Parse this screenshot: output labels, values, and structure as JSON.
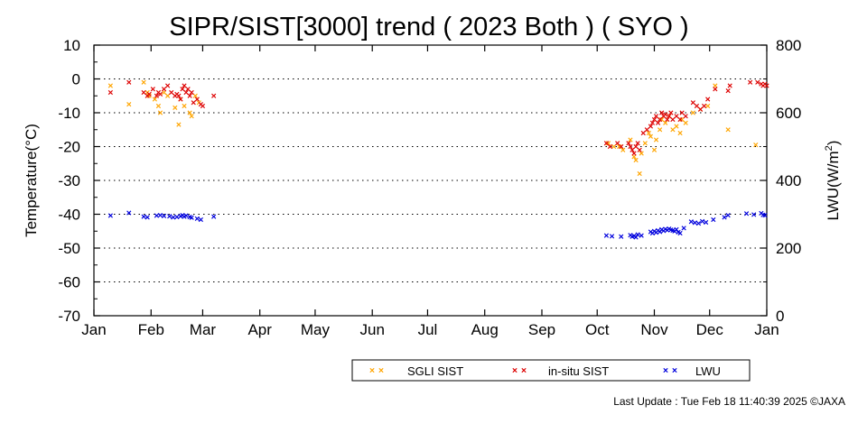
{
  "chart_data": {
    "type": "scatter",
    "title": "SIPR/SIST[3000] trend ( 2023 Both ) ( SYO )",
    "ylabel": "Temperature(°C)",
    "y2label_prefix": "LWU(W/m",
    "y2label_sup": "2",
    "y2label_suffix": ")",
    "ylim": [
      -70,
      10
    ],
    "yticks": [
      10,
      0,
      -10,
      -20,
      -30,
      -40,
      -50,
      -60,
      -70
    ],
    "y2lim": [
      0,
      800
    ],
    "y2ticks": [
      800,
      600,
      400,
      200,
      0
    ],
    "xlim": [
      0,
      365
    ],
    "x_unit": "day of year (2023)",
    "xticks": [
      {
        "label": "Jan",
        "day": 0
      },
      {
        "label": "Feb",
        "day": 31
      },
      {
        "label": "Mar",
        "day": 59
      },
      {
        "label": "Apr",
        "day": 90
      },
      {
        "label": "May",
        "day": 120
      },
      {
        "label": "Jun",
        "day": 151
      },
      {
        "label": "Jul",
        "day": 181
      },
      {
        "label": "Aug",
        "day": 212
      },
      {
        "label": "Sep",
        "day": 243
      },
      {
        "label": "Oct",
        "day": 273
      },
      {
        "label": "Nov",
        "day": 304
      },
      {
        "label": "Dec",
        "day": 334
      },
      {
        "label": "Jan",
        "day": 365
      }
    ],
    "grid_y_values": [
      0,
      -10,
      -20,
      -30,
      -40,
      -50,
      -60
    ],
    "legend_position": "bottom",
    "series": [
      {
        "name": "SGLI SIST",
        "color": "#FFA500",
        "axis": "left",
        "points": [
          [
            9,
            -2
          ],
          [
            19,
            -7.5
          ],
          [
            27,
            -1
          ],
          [
            29,
            -4
          ],
          [
            30,
            -5
          ],
          [
            33,
            -6
          ],
          [
            35,
            -8
          ],
          [
            36,
            -10
          ],
          [
            38,
            -4
          ],
          [
            40,
            -5
          ],
          [
            44,
            -8.5
          ],
          [
            46,
            -13.5
          ],
          [
            47,
            -6
          ],
          [
            49,
            -8
          ],
          [
            52,
            -10
          ],
          [
            53,
            -11
          ],
          [
            55,
            -5
          ],
          [
            57,
            -7
          ],
          [
            279,
            -19
          ],
          [
            282,
            -20
          ],
          [
            285,
            -20
          ],
          [
            287,
            -21
          ],
          [
            291,
            -18
          ],
          [
            293,
            -23
          ],
          [
            294,
            -24
          ],
          [
            296,
            -28
          ],
          [
            297,
            -22
          ],
          [
            299,
            -19
          ],
          [
            301,
            -16
          ],
          [
            302,
            -17
          ],
          [
            304,
            -21
          ],
          [
            305,
            -18
          ],
          [
            307,
            -15
          ],
          [
            308,
            -12
          ],
          [
            310,
            -13
          ],
          [
            312,
            -11
          ],
          [
            314,
            -15
          ],
          [
            316,
            -14
          ],
          [
            318,
            -16
          ],
          [
            319,
            -12
          ],
          [
            321,
            -13
          ],
          [
            325,
            -10
          ],
          [
            329,
            -9
          ],
          [
            333,
            -8
          ],
          [
            337,
            -2
          ],
          [
            344,
            -15
          ],
          [
            359,
            -19.5
          ]
        ]
      },
      {
        "name": "in-situ SIST",
        "color": "#DD0000",
        "axis": "left",
        "points": [
          [
            9,
            -4
          ],
          [
            19,
            -1
          ],
          [
            27,
            -4
          ],
          [
            29,
            -5
          ],
          [
            30,
            -4.5
          ],
          [
            32,
            -3
          ],
          [
            34,
            -5
          ],
          [
            35,
            -4
          ],
          [
            36,
            -4.5
          ],
          [
            38,
            -3
          ],
          [
            40,
            -2
          ],
          [
            42,
            -4
          ],
          [
            44,
            -5
          ],
          [
            45,
            -4.5
          ],
          [
            46,
            -5
          ],
          [
            47,
            -6
          ],
          [
            48,
            -3
          ],
          [
            49,
            -2
          ],
          [
            50,
            -4
          ],
          [
            51,
            -3
          ],
          [
            52,
            -5
          ],
          [
            53,
            -4
          ],
          [
            54,
            -7
          ],
          [
            56,
            -6
          ],
          [
            58,
            -7.5
          ],
          [
            59,
            -8
          ],
          [
            65,
            -5
          ],
          [
            278,
            -19
          ],
          [
            280,
            -20
          ],
          [
            284,
            -19
          ],
          [
            286,
            -20
          ],
          [
            290,
            -19
          ],
          [
            291,
            -20
          ],
          [
            292,
            -21
          ],
          [
            293,
            -22
          ],
          [
            294,
            -20
          ],
          [
            295,
            -19
          ],
          [
            296,
            -21
          ],
          [
            298,
            -16
          ],
          [
            300,
            -15
          ],
          [
            302,
            -14
          ],
          [
            303,
            -13
          ],
          [
            304,
            -12
          ],
          [
            305,
            -11
          ],
          [
            306,
            -13
          ],
          [
            307,
            -12
          ],
          [
            308,
            -10
          ],
          [
            309,
            -11
          ],
          [
            310,
            -10.5
          ],
          [
            311,
            -12
          ],
          [
            312,
            -11
          ],
          [
            313,
            -10
          ],
          [
            314,
            -12
          ],
          [
            316,
            -11
          ],
          [
            318,
            -12
          ],
          [
            319,
            -10
          ],
          [
            321,
            -11
          ],
          [
            325,
            -7
          ],
          [
            327,
            -8
          ],
          [
            329,
            -9
          ],
          [
            331,
            -8
          ],
          [
            333,
            -6
          ],
          [
            337,
            -3
          ],
          [
            344,
            -3.5
          ],
          [
            345,
            -2
          ],
          [
            356,
            -1
          ],
          [
            360,
            -1
          ],
          [
            362,
            -1.5
          ],
          [
            363,
            -2
          ],
          [
            364,
            -1.5
          ],
          [
            365,
            -2
          ]
        ]
      },
      {
        "name": "LWU",
        "color": "#0000DD",
        "axis": "right",
        "points": [
          [
            9,
            296
          ],
          [
            19,
            304
          ],
          [
            27,
            293
          ],
          [
            29,
            291
          ],
          [
            34,
            296
          ],
          [
            36,
            297
          ],
          [
            38,
            295
          ],
          [
            41,
            294
          ],
          [
            43,
            291
          ],
          [
            45,
            292
          ],
          [
            47,
            294
          ],
          [
            48,
            297
          ],
          [
            49,
            293
          ],
          [
            50,
            296
          ],
          [
            52,
            292
          ],
          [
            53,
            290
          ],
          [
            56,
            287
          ],
          [
            58,
            284
          ],
          [
            65,
            293
          ],
          [
            278,
            237
          ],
          [
            281,
            235
          ],
          [
            286,
            234
          ],
          [
            291,
            238
          ],
          [
            292,
            234
          ],
          [
            293,
            236
          ],
          [
            294,
            232
          ],
          [
            295,
            240
          ],
          [
            297,
            237
          ],
          [
            302,
            248
          ],
          [
            303,
            244
          ],
          [
            304,
            250
          ],
          [
            305,
            246
          ],
          [
            306,
            252
          ],
          [
            307,
            248
          ],
          [
            308,
            255
          ],
          [
            309,
            251
          ],
          [
            310,
            256
          ],
          [
            311,
            253
          ],
          [
            312,
            257
          ],
          [
            313,
            254
          ],
          [
            314,
            252
          ],
          [
            315,
            250
          ],
          [
            316,
            255
          ],
          [
            317,
            247
          ],
          [
            318,
            244
          ],
          [
            320,
            259
          ],
          [
            324,
            278
          ],
          [
            326,
            275
          ],
          [
            328,
            273
          ],
          [
            330,
            279
          ],
          [
            332,
            276
          ],
          [
            336,
            284
          ],
          [
            342,
            291
          ],
          [
            344,
            297
          ],
          [
            354,
            302
          ],
          [
            358,
            299
          ],
          [
            362,
            303
          ],
          [
            363,
            298
          ],
          [
            364,
            297
          ]
        ]
      }
    ]
  },
  "footer": {
    "last_update": "Last Update : Tue Feb 18 11:40:39 2025  ©JAXA"
  }
}
